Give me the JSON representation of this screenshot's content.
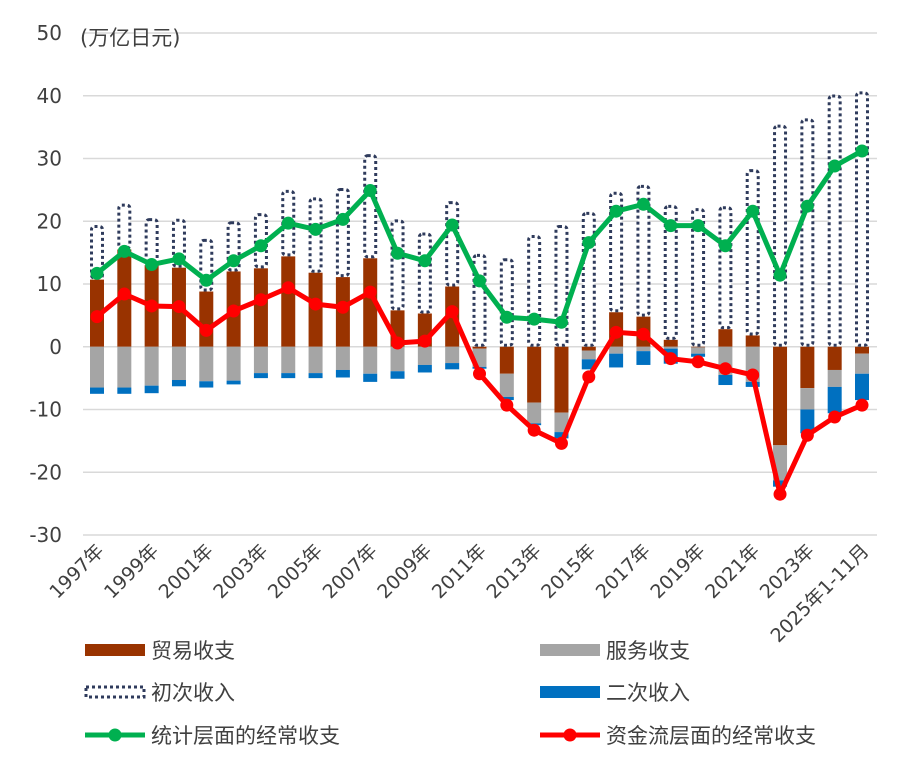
{
  "chart_data": {
    "type": "bar",
    "unit_label": "(万亿日元)",
    "ylim": [
      -30,
      50
    ],
    "yticks": [
      50,
      40,
      30,
      20,
      10,
      0,
      -10,
      -20,
      -30
    ],
    "grid": true,
    "legend_position": "bottom",
    "categories": [
      "1997年",
      "1998年",
      "1999年",
      "2000年",
      "2001年",
      "2002年",
      "2003年",
      "2004年",
      "2005年",
      "2006年",
      "2007年",
      "2008年",
      "2009年",
      "2010年",
      "2011年",
      "2012年",
      "2013年",
      "2014年",
      "2015年",
      "2016年",
      "2017年",
      "2018年",
      "2019年",
      "2020年",
      "2021年",
      "2022年",
      "2023年",
      "2024年",
      "2025年1-11月"
    ],
    "shown_tick_labels": [
      "1997年",
      "1999年",
      "2001年",
      "2003年",
      "2005年",
      "2007年",
      "2009年",
      "2011年",
      "2013年",
      "2015年",
      "2017年",
      "2019年",
      "2021年",
      "2023年",
      "2025年1-11月"
    ],
    "series": [
      {
        "name": "贸易收支",
        "kind": "bar",
        "color": "#993300",
        "values": [
          10.7,
          15.5,
          13.0,
          12.6,
          8.8,
          12.0,
          12.5,
          14.4,
          11.8,
          11.1,
          14.1,
          5.8,
          5.3,
          9.6,
          -0.3,
          -4.3,
          -8.9,
          -10.5,
          -0.6,
          5.5,
          4.8,
          1.1,
          -0.1,
          2.8,
          1.8,
          -15.7,
          -6.6,
          -3.7,
          -1.1
        ]
      },
      {
        "name": "服务收支",
        "kind": "bar",
        "color": "#a5a5a5",
        "values": [
          -6.5,
          -6.5,
          -6.2,
          -5.3,
          -5.5,
          -5.4,
          -4.2,
          -4.2,
          -4.2,
          -3.7,
          -4.3,
          -3.9,
          -2.9,
          -2.6,
          -2.9,
          -3.7,
          -3.3,
          -3.1,
          -1.4,
          -1.1,
          -0.7,
          -0.3,
          -1.0,
          -4.5,
          -5.6,
          -5.6,
          -3.4,
          -2.7,
          -3.2
        ]
      },
      {
        "name": "初次收入",
        "kind": "bar-dotted",
        "color": "#2f3b5c",
        "values": [
          8.7,
          7.3,
          7.5,
          7.8,
          8.4,
          8.0,
          8.8,
          10.6,
          12.0,
          14.2,
          16.6,
          14.5,
          12.9,
          13.6,
          14.8,
          14.1,
          17.8,
          19.4,
          21.5,
          19.2,
          21.0,
          21.5,
          22.1,
          19.6,
          26.5,
          35.4,
          36.4,
          40.2,
          40.7
        ]
      },
      {
        "name": "二次收入",
        "kind": "bar",
        "color": "#0070c0",
        "values": [
          -1.0,
          -1.0,
          -1.2,
          -1.0,
          -1.0,
          -0.6,
          -0.8,
          -0.8,
          -0.8,
          -1.2,
          -1.3,
          -1.2,
          -1.2,
          -1.0,
          -0.3,
          -0.5,
          -0.3,
          -1.0,
          -1.6,
          -2.2,
          -2.2,
          -2.4,
          -0.5,
          -1.6,
          -0.8,
          -1.0,
          -3.8,
          -4.2,
          -4.2
        ]
      },
      {
        "name": "统计层面的经常收支",
        "kind": "line",
        "color": "#00b050",
        "values": [
          11.7,
          15.2,
          13.1,
          14.0,
          10.6,
          13.7,
          16.1,
          19.7,
          18.7,
          20.3,
          24.9,
          14.9,
          13.7,
          19.4,
          10.5,
          4.7,
          4.4,
          3.9,
          16.6,
          21.6,
          22.7,
          19.3,
          19.3,
          16.1,
          21.6,
          11.4,
          22.4,
          28.8,
          31.2
        ]
      },
      {
        "name": "资金流层面的经常收支",
        "kind": "line",
        "color": "#ff0000",
        "values": [
          4.8,
          8.4,
          6.5,
          6.4,
          2.6,
          5.7,
          7.5,
          9.4,
          6.8,
          6.3,
          8.7,
          0.6,
          0.9,
          5.6,
          -4.3,
          -9.3,
          -13.3,
          -15.4,
          -4.8,
          2.3,
          2.0,
          -1.9,
          -2.4,
          -3.5,
          -4.5,
          -23.5,
          -14.1,
          -11.2,
          -9.3
        ]
      }
    ]
  }
}
